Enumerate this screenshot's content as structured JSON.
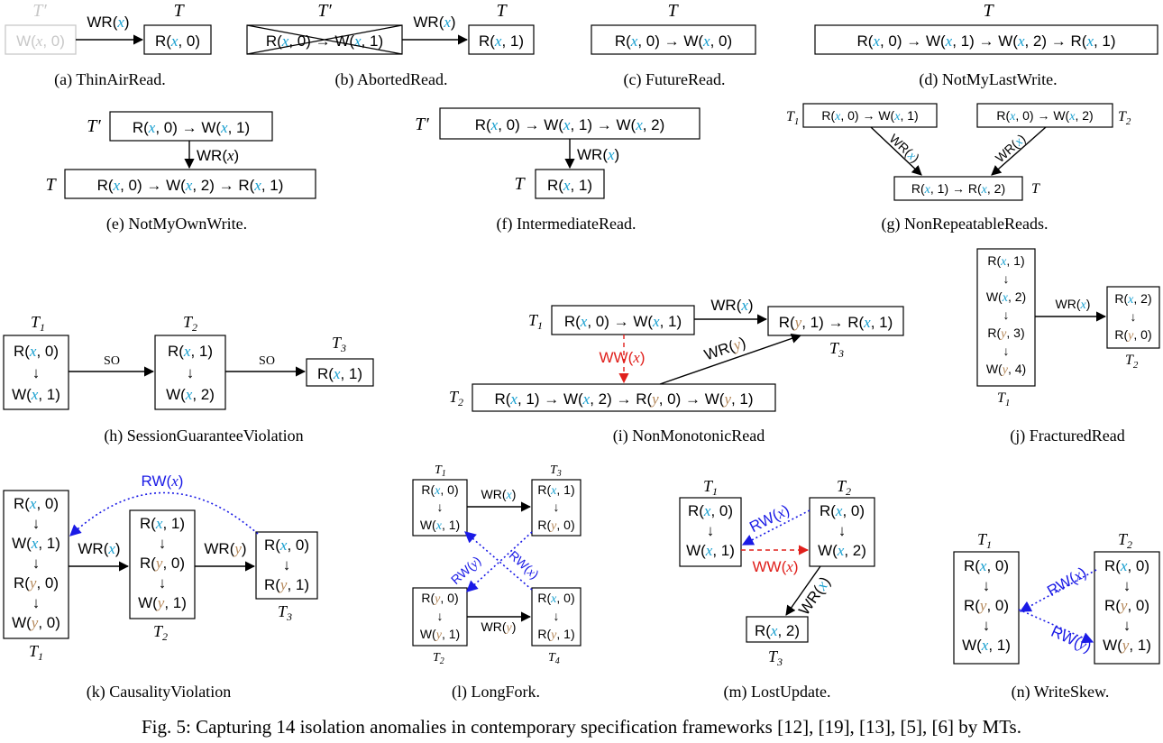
{
  "captions": {
    "a": "(a) ThinAirRead.",
    "b": "(b) AbortedRead.",
    "c": "(c) FutureRead.",
    "d": "(d) NotMyLastWrite.",
    "e": "(e) NotMyOwnWrite.",
    "f": "(f) IntermediateRead.",
    "g": "(g) NonRepeatableReads.",
    "h": "(h) SessionGuaranteeViolation",
    "i": "(i) NonMonotonicRead",
    "j": "(j) FracturedRead",
    "k": "(k) CausalityViolation",
    "l": "(l) LongFork.",
    "m": "(m) LostUpdate.",
    "n": "(n) WriteSkew."
  },
  "figure_caption": "Fig. 5: Capturing 14 isolation anomalies in contemporary specification frameworks [12], [19], [13], [5], [6] by MTs.",
  "edge_labels": {
    "so": "SO",
    "wr_x": "WR(x)",
    "wr_y": "WR(y)",
    "ww_x": "WW(x)",
    "rw_x": "RW(x)",
    "rw_y": "RW(y)"
  },
  "transactions": {
    "T": "T",
    "Tprime": "T′",
    "T1": "T1",
    "T2": "T2",
    "T3": "T3",
    "T4": "T4"
  },
  "colors": {
    "x_var": "#1aa0d0",
    "y_var": "#b5885a",
    "ww_edge": "#e0201c",
    "rw_edge": "#1a1ae6",
    "aborted_gray": "#c8c8c8"
  }
}
